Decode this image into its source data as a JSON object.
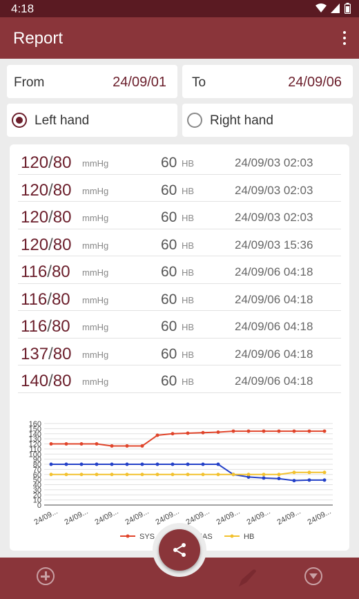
{
  "status_bar": {
    "time": "4:18"
  },
  "app_bar": {
    "title": "Report",
    "menu_icon": "more-vert-icon"
  },
  "filters": {
    "from_label": "From",
    "from_value": "24/09/01",
    "to_label": "To",
    "to_value": "24/09/06",
    "left_hand": "Left hand",
    "right_hand": "Right hand",
    "selected_hand": "left"
  },
  "records": [
    {
      "sys": "120",
      "dia": "80",
      "unit": "mmHg",
      "hb": "60",
      "hb_unit": "HB",
      "datetime": "24/09/03 02:03"
    },
    {
      "sys": "120",
      "dia": "80",
      "unit": "mmHg",
      "hb": "60",
      "hb_unit": "HB",
      "datetime": "24/09/03 02:03"
    },
    {
      "sys": "120",
      "dia": "80",
      "unit": "mmHg",
      "hb": "60",
      "hb_unit": "HB",
      "datetime": "24/09/03 02:03"
    },
    {
      "sys": "120",
      "dia": "80",
      "unit": "mmHg",
      "hb": "60",
      "hb_unit": "HB",
      "datetime": "24/09/03 15:36"
    },
    {
      "sys": "116",
      "dia": "80",
      "unit": "mmHg",
      "hb": "60",
      "hb_unit": "HB",
      "datetime": "24/09/06 04:18"
    },
    {
      "sys": "116",
      "dia": "80",
      "unit": "mmHg",
      "hb": "60",
      "hb_unit": "HB",
      "datetime": "24/09/06 04:18"
    },
    {
      "sys": "116",
      "dia": "80",
      "unit": "mmHg",
      "hb": "60",
      "hb_unit": "HB",
      "datetime": "24/09/06 04:18"
    },
    {
      "sys": "137",
      "dia": "80",
      "unit": "mmHg",
      "hb": "60",
      "hb_unit": "HB",
      "datetime": "24/09/06 04:18"
    },
    {
      "sys": "140",
      "dia": "80",
      "unit": "mmHg",
      "hb": "60",
      "hb_unit": "HB",
      "datetime": "24/09/06 04:18"
    }
  ],
  "chart_data": {
    "type": "line",
    "ylim": [
      0,
      160
    ],
    "yticks": [
      0,
      10,
      20,
      30,
      40,
      50,
      60,
      70,
      80,
      90,
      100,
      110,
      120,
      130,
      140,
      150,
      160
    ],
    "xtick_labels": [
      "24/09...",
      "24/09...",
      "24/09...",
      "24/09...",
      "24/09...",
      "24/09...",
      "24/09...",
      "24/09...",
      "24/09...",
      "24/09..."
    ],
    "legend_position": "bottom",
    "grid": true,
    "series": [
      {
        "name": "SYS",
        "color": "#e0442a",
        "values": [
          120,
          120,
          120,
          120,
          116,
          116,
          116,
          137,
          140,
          141,
          142,
          143,
          145,
          145,
          145,
          145,
          145,
          145,
          145
        ]
      },
      {
        "name": "DIAS",
        "color": "#2340c8",
        "values": [
          80,
          80,
          80,
          80,
          80,
          80,
          80,
          80,
          80,
          80,
          80,
          80,
          60,
          55,
          53,
          52,
          48,
          49,
          49
        ]
      },
      {
        "name": "HB",
        "color": "#f2c12e",
        "values": [
          60,
          60,
          60,
          60,
          60,
          60,
          60,
          60,
          60,
          60,
          60,
          60,
          60,
          60,
          60,
          60,
          64,
          64,
          64
        ]
      }
    ]
  },
  "fab": {
    "icon": "share-icon"
  },
  "bottom_bar": {
    "left_icon": "add-circle-icon",
    "middle_icon": "pen-icon",
    "right_icon": "dropdown-circle-icon"
  }
}
